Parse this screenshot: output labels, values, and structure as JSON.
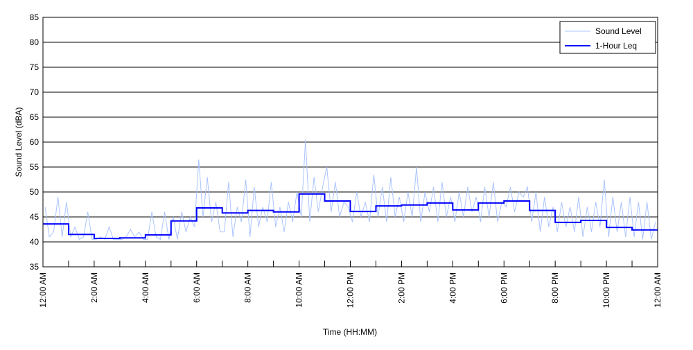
{
  "chart_data": {
    "type": "line",
    "title": "",
    "xlabel": "Time (HH:MM)",
    "ylabel": "Sound Level (dBA)",
    "ylim": [
      35,
      85
    ],
    "yticks": [
      35,
      40,
      45,
      50,
      55,
      60,
      65,
      70,
      75,
      80,
      85
    ],
    "xlim_hours": [
      0,
      24
    ],
    "xtick_labels": [
      "12:00 AM",
      "2:00 AM",
      "4:00 AM",
      "6:00 AM",
      "8:00 AM",
      "10:00 AM",
      "12:00 PM",
      "2:00 PM",
      "4:00 PM",
      "6:00 PM",
      "8:00 PM",
      "10:00 PM",
      "12:00 AM"
    ],
    "grid": "horizontal",
    "legend_position": "top-right",
    "series": [
      {
        "name": "Sound Level",
        "color": "#aac4ff",
        "sample_interval_minutes": 10,
        "values": [
          47,
          41,
          42,
          49,
          41,
          48,
          41,
          43,
          40.5,
          41,
          46,
          40.5,
          40.5,
          41,
          40.5,
          43,
          40.5,
          40.5,
          40.5,
          41,
          42.5,
          41,
          42,
          40.5,
          40.5,
          46,
          41,
          40.5,
          46,
          40.5,
          45,
          40.5,
          46,
          42,
          45,
          43,
          56.5,
          45,
          53,
          44,
          48,
          42,
          42,
          52,
          41,
          47,
          44,
          52.5,
          41,
          51,
          43,
          47,
          44,
          52,
          43,
          47,
          42,
          48,
          44,
          50,
          45,
          60.5,
          44,
          53,
          46,
          51,
          55,
          46,
          52,
          45,
          48,
          47,
          44,
          50,
          45,
          48,
          44,
          53.5,
          45,
          51,
          44,
          53,
          45,
          49,
          44,
          50,
          45,
          55,
          44,
          50,
          46,
          51,
          44,
          52,
          45,
          49,
          44,
          50,
          45,
          51,
          46,
          49,
          44,
          51,
          45,
          52,
          44,
          48,
          47,
          51,
          46,
          50,
          49,
          51,
          44,
          50,
          42,
          49,
          43,
          47,
          42,
          48,
          43,
          47,
          42,
          49,
          41,
          47,
          42,
          48,
          43,
          52.5,
          41,
          49,
          42,
          48,
          41,
          49,
          41,
          48,
          40.5,
          48,
          40.5,
          44
        ]
      },
      {
        "name": "1-Hour Leq",
        "color": "#0000ff",
        "step": "hourly",
        "values": [
          43.6,
          41.5,
          40.7,
          40.8,
          41.4,
          44.2,
          46.8,
          45.8,
          46.3,
          46.0,
          49.6,
          48.2,
          46.1,
          47.2,
          47.4,
          47.8,
          46.4,
          47.8,
          48.2,
          46.3,
          43.9,
          44.3,
          42.9,
          42.4
        ]
      }
    ]
  }
}
